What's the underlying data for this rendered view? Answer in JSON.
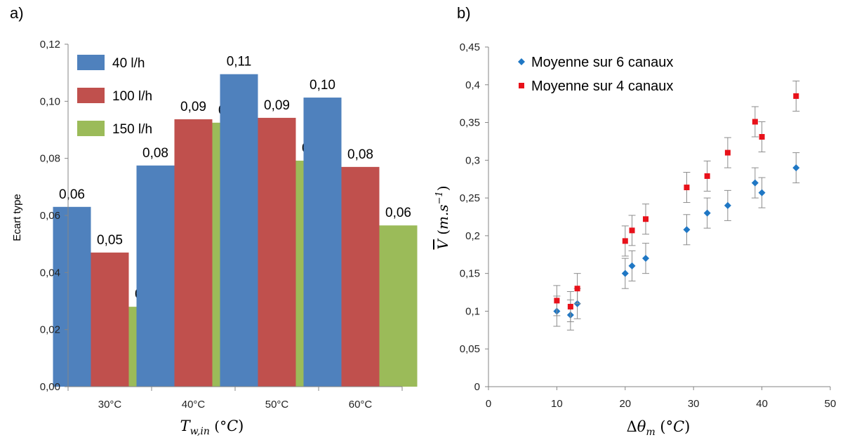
{
  "chart_data": [
    {
      "panel": "a)",
      "type": "bar",
      "categories": [
        "30°C",
        "40°C",
        "50°C",
        "60°C"
      ],
      "series": [
        {
          "name": "40 l/h",
          "color": "#4f81bd",
          "values": [
            0.063,
            0.0775,
            0.1095,
            0.1013
          ],
          "labels": [
            "0,06",
            "0,08",
            "0,11",
            "0,10"
          ]
        },
        {
          "name": "100 l/h",
          "color": "#c0504d",
          "values": [
            0.047,
            0.0937,
            0.0942,
            0.077
          ],
          "labels": [
            "0,05",
            "0,09",
            "0,09",
            "0,08"
          ]
        },
        {
          "name": "150 l/h",
          "color": "#9bbb59",
          "values": [
            0.028,
            0.0925,
            0.0792,
            0.0565
          ],
          "labels": [
            "0,03",
            "0,09",
            "0,08",
            "0,06"
          ]
        }
      ],
      "ylim": [
        0,
        0.12
      ],
      "yticks": [
        "0,00",
        "0,02",
        "0,04",
        "0,06",
        "0,08",
        "0,10",
        "0,12"
      ],
      "ylabel": "Ecart type",
      "xlabel": "T_{w,in} (°C)",
      "legend": "top-left",
      "grid": false
    },
    {
      "panel": "b)",
      "type": "scatter",
      "series": [
        {
          "name": "Moyenne sur 6 canaux",
          "color": "#1f77c4",
          "marker": "diamond",
          "x": [
            10,
            12,
            13,
            20,
            21,
            23,
            29,
            32,
            35,
            39,
            40,
            45
          ],
          "y": [
            0.1,
            0.095,
            0.11,
            0.15,
            0.16,
            0.17,
            0.208,
            0.23,
            0.24,
            0.27,
            0.257,
            0.29
          ],
          "error": 0.02
        },
        {
          "name": "Moyenne sur 4 canaux",
          "color": "#e8111a",
          "marker": "square",
          "x": [
            10,
            12,
            13,
            20,
            21,
            23,
            29,
            32,
            35,
            39,
            40,
            45
          ],
          "y": [
            0.114,
            0.106,
            0.13,
            0.193,
            0.207,
            0.222,
            0.264,
            0.279,
            0.31,
            0.351,
            0.331,
            0.385
          ],
          "error": 0.02
        }
      ],
      "xlim": [
        0,
        50
      ],
      "ylim": [
        0,
        0.45
      ],
      "xticks": [
        "0",
        "10",
        "20",
        "30",
        "40",
        "50"
      ],
      "yticks": [
        "0",
        "0,05",
        "0,1",
        "0,15",
        "0,2",
        "0,25",
        "0,3",
        "0,35",
        "0,4",
        "0,45"
      ],
      "xlabel": "Δθ_m (°C)",
      "ylabel": "V̄ (m.s^-1)",
      "legend": "top-left",
      "grid": false
    }
  ]
}
